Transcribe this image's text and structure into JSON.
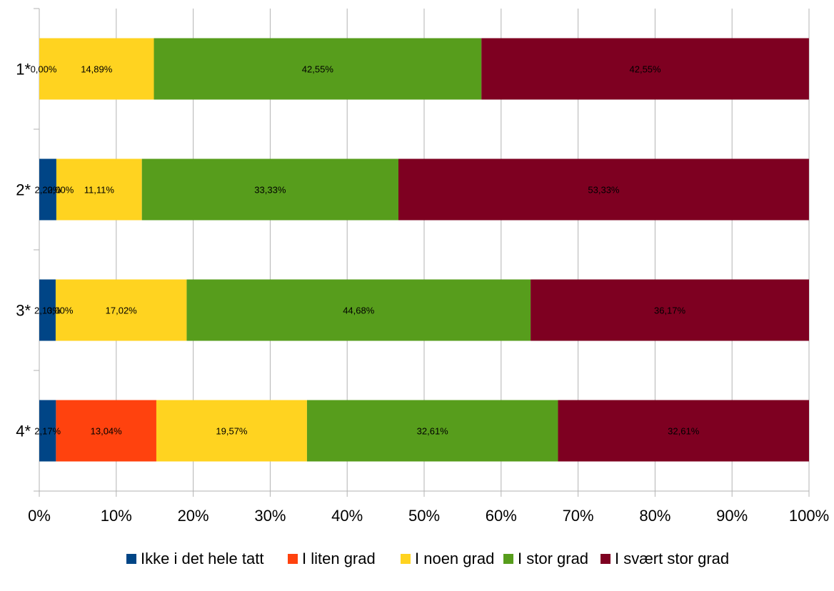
{
  "chart_data": {
    "type": "bar",
    "orientation": "horizontal",
    "stacked": "percent",
    "categories": [
      "1*",
      "2*",
      "3*",
      "4*"
    ],
    "series": [
      {
        "name": "Ikke i det hele tatt",
        "color": "#004586",
        "values": [
          0.0,
          2.22,
          2.13,
          2.17
        ],
        "labels": [
          "0,00%",
          "2,22%",
          "2,13%",
          "2,17%"
        ]
      },
      {
        "name": "I liten grad",
        "color": "#ff420e",
        "values": [
          0.0,
          0.0,
          0.0,
          13.04
        ],
        "labels": [
          "0,00%",
          "0,00%",
          "0,00%",
          "13,04%"
        ]
      },
      {
        "name": "I noen grad",
        "color": "#ffd320",
        "values": [
          14.89,
          11.11,
          17.02,
          19.57
        ],
        "labels": [
          "14,89%",
          "11,11%",
          "17,02%",
          "19,57%"
        ]
      },
      {
        "name": "I stor grad",
        "color": "#579d1c",
        "values": [
          42.55,
          33.33,
          44.68,
          32.61
        ],
        "labels": [
          "42,55%",
          "33,33%",
          "44,68%",
          "32,61%"
        ]
      },
      {
        "name": "I svært stor grad",
        "color": "#7e0021",
        "values": [
          42.55,
          53.33,
          36.17,
          32.61
        ],
        "labels": [
          "42,55%",
          "53,33%",
          "36,17%",
          "32,61%"
        ]
      }
    ],
    "xticks": [
      "0%",
      "10%",
      "20%",
      "30%",
      "40%",
      "50%",
      "60%",
      "70%",
      "80%",
      "90%",
      "100%"
    ],
    "xlim": [
      0,
      100
    ],
    "grid": true,
    "legend": "bottom"
  }
}
